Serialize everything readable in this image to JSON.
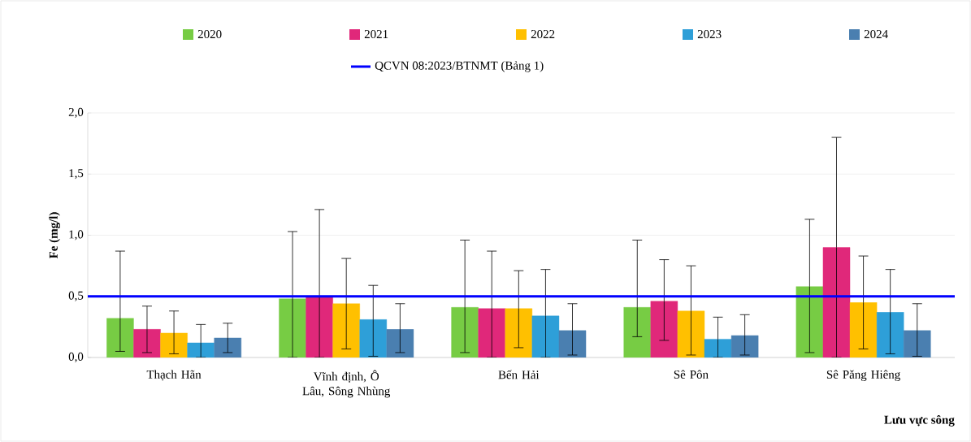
{
  "chart_data": {
    "type": "bar",
    "ylabel": "Fe (mg/l)",
    "xlabel": "Lưu vực sông",
    "categories": [
      "Thạch Hãn",
      "Vĩnh định, Ô Lâu, Sông Nhùng",
      "Bến Hải",
      "Sê Pôn",
      "Sê Păng Hiêng"
    ],
    "series": [
      {
        "name": "2020",
        "color": "#77cc44",
        "values": [
          0.32,
          0.48,
          0.41,
          0.41,
          0.58
        ],
        "errors": [
          [
            0.05,
            0.87
          ],
          [
            0.0,
            1.03
          ],
          [
            0.04,
            0.96
          ],
          [
            0.17,
            0.96
          ],
          [
            0.04,
            1.13
          ]
        ]
      },
      {
        "name": "2021",
        "color": "#e0287a",
        "values": [
          0.23,
          0.5,
          0.4,
          0.46,
          0.9
        ],
        "errors": [
          [
            0.04,
            0.42
          ],
          [
            0.0,
            1.21
          ],
          [
            0.0,
            0.87
          ],
          [
            0.14,
            0.8
          ],
          [
            0.0,
            1.8
          ]
        ]
      },
      {
        "name": "2022",
        "color": "#ffc000",
        "values": [
          0.2,
          0.44,
          0.4,
          0.38,
          0.45
        ],
        "errors": [
          [
            0.03,
            0.38
          ],
          [
            0.07,
            0.81
          ],
          [
            0.08,
            0.71
          ],
          [
            0.02,
            0.75
          ],
          [
            0.07,
            0.83
          ]
        ]
      },
      {
        "name": "2023",
        "color": "#2e9fd8",
        "values": [
          0.12,
          0.31,
          0.34,
          0.15,
          0.37
        ],
        "errors": [
          [
            0.0,
            0.27
          ],
          [
            0.01,
            0.59
          ],
          [
            0.0,
            0.72
          ],
          [
            0.0,
            0.33
          ],
          [
            0.03,
            0.72
          ]
        ]
      },
      {
        "name": "2024",
        "color": "#4a7fb0",
        "values": [
          0.16,
          0.23,
          0.22,
          0.18,
          0.22
        ],
        "errors": [
          [
            0.04,
            0.28
          ],
          [
            0.04,
            0.44
          ],
          [
            0.02,
            0.44
          ],
          [
            0.02,
            0.35
          ],
          [
            0.01,
            0.44
          ]
        ]
      }
    ],
    "ref_lines": [
      {
        "axis": "y",
        "value": 0.5,
        "label": "QCVN 08:2023/BTNMT  (Bảng 1)",
        "color": "#0000ff"
      }
    ],
    "ylim": [
      0,
      2
    ],
    "yticks": [
      {
        "value": 0,
        "label": "0,0"
      },
      {
        "value": 0.5,
        "label": "0,5"
      },
      {
        "value": 1,
        "label": "1,0"
      },
      {
        "value": 1.5,
        "label": "1,5"
      },
      {
        "value": 2,
        "label": "2,0"
      }
    ],
    "grid": "y",
    "legend": "top"
  }
}
